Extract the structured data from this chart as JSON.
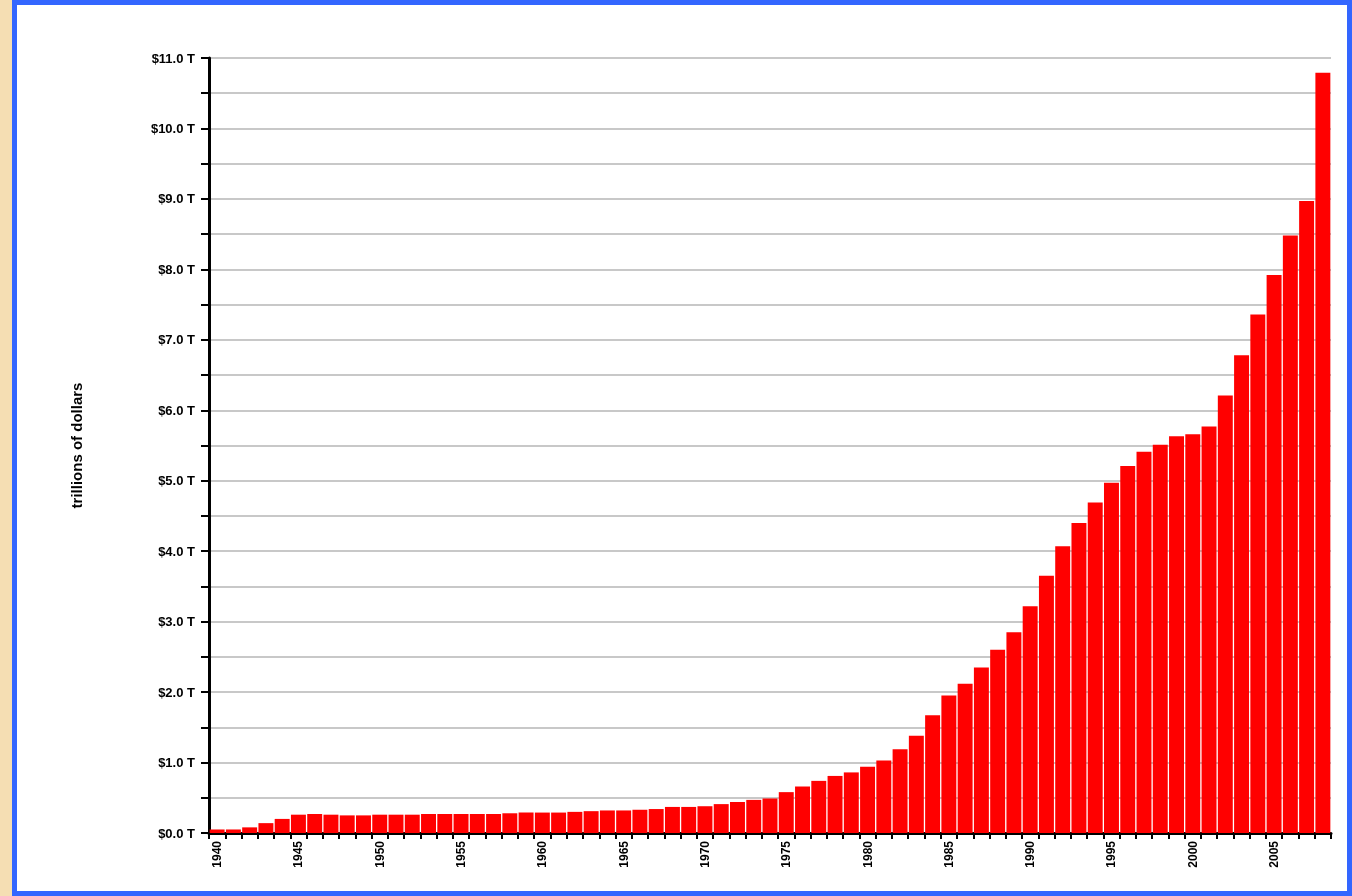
{
  "chart_data": {
    "type": "bar",
    "ylabel": "trillions of dollars",
    "categories": [
      "1940",
      null,
      null,
      null,
      null,
      "1945",
      null,
      null,
      null,
      null,
      "1950",
      null,
      null,
      null,
      null,
      "1955",
      null,
      null,
      null,
      null,
      "1960",
      null,
      null,
      null,
      null,
      "1965",
      null,
      null,
      null,
      null,
      "1970",
      null,
      null,
      null,
      null,
      "1975",
      null,
      null,
      null,
      null,
      "1980",
      null,
      null,
      null,
      null,
      "1985",
      null,
      null,
      null,
      null,
      "1990",
      null,
      null,
      null,
      null,
      "1995",
      null,
      null,
      null,
      null,
      "2000",
      null,
      null,
      null,
      null,
      "2005",
      null,
      null,
      null
    ],
    "series": [
      {
        "color": "#ff0000",
        "values": [
          0.05,
          0.05,
          0.08,
          0.14,
          0.2,
          0.26,
          0.27,
          0.26,
          0.25,
          0.25,
          0.26,
          0.26,
          0.26,
          0.27,
          0.27,
          0.27,
          0.27,
          0.27,
          0.28,
          0.29,
          0.29,
          0.29,
          0.3,
          0.31,
          0.32,
          0.32,
          0.33,
          0.34,
          0.37,
          0.37,
          0.38,
          0.41,
          0.44,
          0.47,
          0.49,
          0.58,
          0.66,
          0.74,
          0.81,
          0.86,
          0.94,
          1.03,
          1.19,
          1.38,
          1.67,
          1.95,
          2.12,
          2.35,
          2.6,
          2.85,
          3.22,
          3.65,
          4.07,
          4.4,
          4.69,
          4.97,
          5.21,
          5.41,
          5.51,
          5.63,
          5.66,
          5.77,
          6.21,
          6.78,
          7.36,
          7.92,
          8.48,
          8.97,
          10.79
        ]
      }
    ],
    "ylim": [
      0,
      11
    ],
    "yticks": [
      {
        "value": 0,
        "label": "$0.0 T"
      },
      {
        "value": 0.5,
        "label": null
      },
      {
        "value": 1,
        "label": "$1.0 T"
      },
      {
        "value": 1.5,
        "label": null
      },
      {
        "value": 2,
        "label": "$2.0 T"
      },
      {
        "value": 2.5,
        "label": null
      },
      {
        "value": 3,
        "label": "$3.0 T"
      },
      {
        "value": 3.5,
        "label": null
      },
      {
        "value": 4,
        "label": "$4.0 T"
      },
      {
        "value": 4.5,
        "label": null
      },
      {
        "value": 5,
        "label": "$5.0 T"
      },
      {
        "value": 5.5,
        "label": null
      },
      {
        "value": 6,
        "label": "$6.0 T"
      },
      {
        "value": 6.5,
        "label": null
      },
      {
        "value": 7,
        "label": "$7.0 T"
      },
      {
        "value": 7.5,
        "label": null
      },
      {
        "value": 8,
        "label": "$8.0 T"
      },
      {
        "value": 8.5,
        "label": null
      },
      {
        "value": 9,
        "label": "$9.0 T"
      },
      {
        "value": 9.5,
        "label": null
      },
      {
        "value": 10,
        "label": "$10.0 T"
      },
      {
        "value": 10.5,
        "label": null
      },
      {
        "value": 11,
        "label": "$11.0 T"
      }
    ],
    "grid": "y"
  }
}
